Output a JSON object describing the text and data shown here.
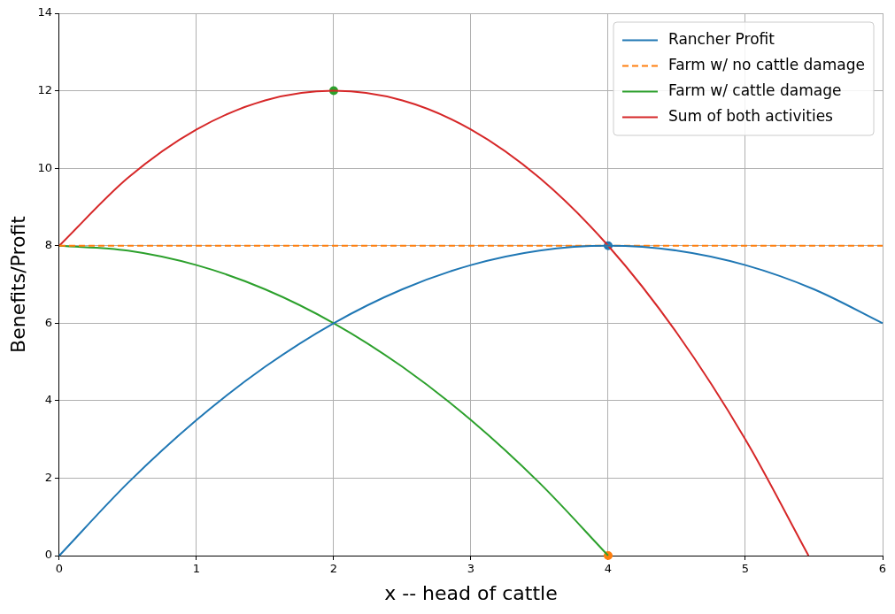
{
  "chart_data": {
    "type": "line",
    "xlabel": "x -- head of cattle",
    "ylabel": "Benefits/Profit",
    "xlim": [
      0,
      6
    ],
    "xticks": [
      0,
      1,
      2,
      3,
      4,
      5,
      6
    ],
    "ylim": [
      0,
      14
    ],
    "yticks": [
      0,
      2,
      4,
      6,
      8,
      10,
      12,
      14
    ],
    "grid": true,
    "legend": "top right",
    "marker": "none",
    "series": [
      {
        "name": "Rancher Profit",
        "color": "#1f77b4",
        "x": [
          0,
          0.5,
          1,
          1.5,
          2,
          2.5,
          3,
          3.5,
          4,
          4.5,
          5,
          5.5,
          6
        ],
        "values": [
          0,
          1.875,
          3.5,
          4.875,
          6,
          6.875,
          7.5,
          7.875,
          8,
          7.875,
          7.5,
          6.875,
          6
        ]
      },
      {
        "name": "Farm w/ no cattle damage",
        "color": "#ff7f0e",
        "line_style": "dashed",
        "x": [
          0,
          6
        ],
        "values": [
          8,
          8
        ]
      },
      {
        "name": "Farm w/ cattle damage",
        "color": "#2ca02c",
        "x": [
          0,
          0.5,
          1,
          1.5,
          2,
          2.5,
          3,
          3.5,
          4
        ],
        "values": [
          8,
          7.875,
          7.5,
          6.875,
          6,
          4.875,
          3.5,
          1.875,
          0
        ]
      },
      {
        "name": "Sum of both activities",
        "color": "#d62728",
        "x": [
          0,
          0.5,
          1,
          1.5,
          2,
          2.5,
          3,
          3.5,
          4,
          4.5,
          5,
          5.46
        ],
        "values": [
          8,
          9.75,
          11,
          11.75,
          12,
          11.75,
          11,
          9.75,
          8,
          5.75,
          3,
          0
        ]
      },
      {
        "type": "scatter",
        "marker": "circle",
        "color": "#2ca02c",
        "x": [
          2
        ],
        "values": [
          12
        ]
      },
      {
        "type": "scatter",
        "marker": "circle",
        "color": "#1f77b4",
        "x": [
          4
        ],
        "values": [
          8
        ]
      },
      {
        "type": "scatter",
        "marker": "circle",
        "color": "#ff7f0e",
        "x": [
          4
        ],
        "values": [
          0
        ]
      }
    ]
  }
}
